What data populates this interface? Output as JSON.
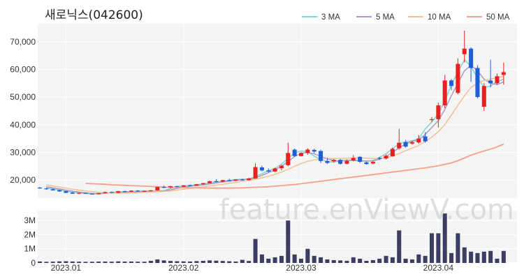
{
  "title": "새로닉스(042600)",
  "watermark": "feature.enViewV.com",
  "chart_data": {
    "type": "candlestick",
    "price_axis": {
      "ticks": [
        20000,
        30000,
        40000,
        50000,
        60000,
        70000
      ],
      "tick_labels": [
        "20,000",
        "30,000",
        "40,000",
        "50,000",
        "60,000",
        "70,000"
      ],
      "ylim": [
        13500,
        76500
      ]
    },
    "volume_axis": {
      "ticks": [
        0,
        1000000,
        2000000,
        3000000
      ],
      "tick_labels": [
        "0",
        "1M",
        "2M",
        "3M"
      ],
      "ylim": [
        0,
        3700000
      ]
    },
    "x_ticks": [
      "2023.01",
      "2023.02",
      "2023.03",
      "2023.04"
    ],
    "x_tick_index": [
      4,
      22,
      40,
      61
    ],
    "grid": true,
    "legend_placement": "top-right",
    "legend": [
      {
        "name": "3 MA",
        "color": "#7fd3d0"
      },
      {
        "name": "5 MA",
        "color": "#b09ac6"
      },
      {
        "name": "10 MA",
        "color": "#f3c28f"
      },
      {
        "name": "50 MA",
        "color": "#f4a08a"
      }
    ],
    "colors": {
      "up": "#e8201f",
      "down": "#1f5fd6",
      "volume": "#3c3d63"
    },
    "ma_values": {
      "3 MA": [
        17200,
        16800,
        16400,
        16000,
        15700,
        15400,
        15200,
        15000,
        15100,
        15300,
        15500,
        15700,
        15800,
        15900,
        16000,
        16100,
        16000,
        16000,
        16200,
        17000,
        17600,
        17900,
        18100,
        18300,
        18600,
        19000,
        19400,
        19600,
        19900,
        20200,
        20300,
        20300,
        21300,
        22300,
        23400,
        24200,
        25800,
        27800,
        29800,
        30500,
        30300,
        28700,
        27400,
        26700,
        26500,
        26900,
        27300,
        27100,
        26900,
        26800,
        27100,
        28200,
        29500,
        31400,
        33100,
        33800,
        34200,
        35000,
        38500,
        41000,
        44000,
        48500,
        54500,
        59000,
        63500,
        61000,
        57000,
        53500,
        54000,
        55500,
        56500
      ],
      "5 MA": [
        17600,
        17200,
        16800,
        16400,
        16000,
        15700,
        15400,
        15200,
        15100,
        15200,
        15400,
        15500,
        15600,
        15700,
        15800,
        15900,
        16000,
        16000,
        16100,
        16500,
        17000,
        17400,
        17800,
        18000,
        18300,
        18600,
        19000,
        19300,
        19600,
        19900,
        20200,
        20300,
        20800,
        21700,
        22700,
        23700,
        25000,
        26700,
        28500,
        29700,
        30000,
        29500,
        28600,
        27700,
        27000,
        26900,
        27000,
        27200,
        27000,
        26900,
        26900,
        27500,
        28500,
        30000,
        31700,
        33100,
        33900,
        34500,
        36500,
        39000,
        41500,
        45500,
        50500,
        55000,
        59500,
        61500,
        59500,
        56500,
        55000,
        54500,
        55500
      ],
      "10 MA": [
        18300,
        17900,
        17500,
        17100,
        16700,
        16400,
        16100,
        15800,
        15600,
        15400,
        15300,
        15300,
        15300,
        15400,
        15500,
        15600,
        15700,
        15800,
        15900,
        16100,
        16400,
        16700,
        17000,
        17300,
        17600,
        17900,
        18200,
        18500,
        18900,
        19200,
        19600,
        19900,
        20300,
        20800,
        21400,
        22100,
        22900,
        23900,
        25000,
        26000,
        26800,
        27300,
        27600,
        27800,
        27800,
        27800,
        27900,
        28000,
        28000,
        27900,
        27800,
        27900,
        28100,
        28700,
        29600,
        30600,
        31600,
        32500,
        34000,
        35500,
        37500,
        40000,
        43500,
        47000,
        50500,
        53500,
        55000,
        56000,
        56500,
        57000,
        57500
      ],
      "50 MA": [
        18800,
        18700,
        18600,
        18500,
        18300,
        18200,
        18100,
        18000,
        17900,
        17800,
        17700,
        17600,
        17500,
        17400,
        17350,
        17300,
        17250,
        17200,
        17150,
        17100,
        17100,
        17100,
        17100,
        17150,
        17200,
        17300,
        17400,
        17500,
        17600,
        17800,
        18000,
        18200,
        18400,
        18700,
        19000,
        19300,
        19600,
        19900,
        20200,
        20500,
        20800,
        21100,
        21400,
        21700,
        22000,
        22300,
        22600,
        22900,
        23200,
        23500,
        23800,
        24100,
        24400,
        24800,
        25200,
        25700,
        26200,
        27000,
        28000,
        29000,
        29800,
        30500,
        31200,
        32000,
        33000
      ]
    },
    "candles": [
      {
        "o": 17300,
        "h": 17500,
        "l": 16900,
        "c": 17000,
        "v": 100000
      },
      {
        "o": 17000,
        "h": 17200,
        "l": 16500,
        "c": 16700,
        "v": 80000
      },
      {
        "o": 16700,
        "h": 16900,
        "l": 16200,
        "c": 16300,
        "v": 90000
      },
      {
        "o": 16400,
        "h": 16500,
        "l": 15800,
        "c": 15900,
        "v": 110000
      },
      {
        "o": 16000,
        "h": 16100,
        "l": 15300,
        "c": 15400,
        "v": 120000
      },
      {
        "o": 15500,
        "h": 15700,
        "l": 15000,
        "c": 15100,
        "v": 100000
      },
      {
        "o": 15100,
        "h": 15500,
        "l": 14900,
        "c": 15400,
        "v": 90000
      },
      {
        "o": 15400,
        "h": 15500,
        "l": 15000,
        "c": 15100,
        "v": 80000
      },
      {
        "o": 15100,
        "h": 15200,
        "l": 14800,
        "c": 14900,
        "v": 85000
      },
      {
        "o": 14900,
        "h": 15400,
        "l": 14800,
        "c": 15300,
        "v": 95000
      },
      {
        "o": 15300,
        "h": 15800,
        "l": 15200,
        "c": 15700,
        "v": 100000
      },
      {
        "o": 15700,
        "h": 15900,
        "l": 15300,
        "c": 15400,
        "v": 90000
      },
      {
        "o": 15400,
        "h": 16100,
        "l": 15300,
        "c": 16000,
        "v": 110000
      },
      {
        "o": 16000,
        "h": 16200,
        "l": 15700,
        "c": 15800,
        "v": 95000
      },
      {
        "o": 15800,
        "h": 16300,
        "l": 15700,
        "c": 16200,
        "v": 100000
      },
      {
        "o": 16200,
        "h": 16400,
        "l": 15800,
        "c": 15900,
        "v": 90000
      },
      {
        "o": 15900,
        "h": 16200,
        "l": 15700,
        "c": 16100,
        "v": 85000
      },
      {
        "o": 16100,
        "h": 16400,
        "l": 15900,
        "c": 16300,
        "v": 150000
      },
      {
        "o": 16300,
        "h": 17700,
        "l": 16200,
        "c": 17500,
        "v": 250000
      },
      {
        "o": 17500,
        "h": 18000,
        "l": 17100,
        "c": 17400,
        "v": 180000
      },
      {
        "o": 17400,
        "h": 17900,
        "l": 17100,
        "c": 17800,
        "v": 140000
      },
      {
        "o": 17800,
        "h": 18000,
        "l": 17400,
        "c": 17600,
        "v": 120000
      },
      {
        "o": 17600,
        "h": 18200,
        "l": 17500,
        "c": 18100,
        "v": 110000
      },
      {
        "o": 18100,
        "h": 18400,
        "l": 17800,
        "c": 18000,
        "v": 100000
      },
      {
        "o": 18000,
        "h": 18600,
        "l": 17900,
        "c": 18500,
        "v": 130000
      },
      {
        "o": 18500,
        "h": 19000,
        "l": 18300,
        "c": 18900,
        "v": 150000
      },
      {
        "o": 18900,
        "h": 19800,
        "l": 18800,
        "c": 19600,
        "v": 180000
      },
      {
        "o": 19600,
        "h": 20300,
        "l": 19200,
        "c": 19400,
        "v": 160000
      },
      {
        "o": 19400,
        "h": 20100,
        "l": 19300,
        "c": 20000,
        "v": 140000
      },
      {
        "o": 20000,
        "h": 20500,
        "l": 19600,
        "c": 19800,
        "v": 120000
      },
      {
        "o": 19800,
        "h": 20300,
        "l": 19600,
        "c": 20200,
        "v": 100000
      },
      {
        "o": 20200,
        "h": 20600,
        "l": 19800,
        "c": 20000,
        "v": 220000
      },
      {
        "o": 20000,
        "h": 20800,
        "l": 19800,
        "c": 20600,
        "v": 140000
      },
      {
        "o": 20600,
        "h": 26000,
        "l": 20400,
        "c": 24700,
        "v": 1700000
      },
      {
        "o": 24600,
        "h": 25200,
        "l": 23100,
        "c": 23500,
        "v": 600000
      },
      {
        "o": 23500,
        "h": 24200,
        "l": 22700,
        "c": 23100,
        "v": 300000
      },
      {
        "o": 23100,
        "h": 24500,
        "l": 22900,
        "c": 24200,
        "v": 400000
      },
      {
        "o": 24300,
        "h": 25500,
        "l": 23600,
        "c": 25200,
        "v": 500000
      },
      {
        "o": 25400,
        "h": 33500,
        "l": 25000,
        "c": 29800,
        "v": 3000000
      },
      {
        "o": 31000,
        "h": 31400,
        "l": 28400,
        "c": 28700,
        "v": 600000
      },
      {
        "o": 28700,
        "h": 30100,
        "l": 28500,
        "c": 29800,
        "v": 300000
      },
      {
        "o": 29800,
        "h": 31500,
        "l": 29200,
        "c": 31000,
        "v": 1000000
      },
      {
        "o": 30900,
        "h": 31300,
        "l": 29800,
        "c": 30300,
        "v": 500000
      },
      {
        "o": 30500,
        "h": 31000,
        "l": 26200,
        "c": 26900,
        "v": 400000
      },
      {
        "o": 26900,
        "h": 28100,
        "l": 25800,
        "c": 26200,
        "v": 250000
      },
      {
        "o": 26800,
        "h": 27600,
        "l": 26300,
        "c": 27300,
        "v": 200000
      },
      {
        "o": 27300,
        "h": 27600,
        "l": 25600,
        "c": 25900,
        "v": 180000
      },
      {
        "o": 25900,
        "h": 27400,
        "l": 25700,
        "c": 26900,
        "v": 150000
      },
      {
        "o": 27100,
        "h": 29000,
        "l": 26800,
        "c": 28000,
        "v": 400000
      },
      {
        "o": 28400,
        "h": 28700,
        "l": 26200,
        "c": 26600,
        "v": 300000
      },
      {
        "o": 26400,
        "h": 26700,
        "l": 25600,
        "c": 25800,
        "v": 150000
      },
      {
        "o": 26000,
        "h": 26900,
        "l": 25700,
        "c": 26600,
        "v": 200000
      },
      {
        "o": 28000,
        "h": 28400,
        "l": 27300,
        "c": 27800,
        "v": 300000
      },
      {
        "o": 27800,
        "h": 29300,
        "l": 27500,
        "c": 28800,
        "v": 500000
      },
      {
        "o": 28600,
        "h": 31800,
        "l": 28400,
        "c": 31300,
        "v": 400000
      },
      {
        "o": 31500,
        "h": 38500,
        "l": 31000,
        "c": 33500,
        "v": 2300000
      },
      {
        "o": 33700,
        "h": 34500,
        "l": 31700,
        "c": 32100,
        "v": 300000
      },
      {
        "o": 33200,
        "h": 34200,
        "l": 32800,
        "c": 33700,
        "v": 250000
      },
      {
        "o": 33600,
        "h": 36300,
        "l": 33100,
        "c": 35000,
        "v": 600000
      },
      {
        "o": 35800,
        "h": 37300,
        "l": 33500,
        "c": 34000,
        "v": 500000
      },
      {
        "o": 41800,
        "h": 42800,
        "l": 40900,
        "c": 42000,
        "v": 2100000
      },
      {
        "o": 42000,
        "h": 48000,
        "l": 39000,
        "c": 47000,
        "v": 2100000
      },
      {
        "o": 47000,
        "h": 58000,
        "l": 46000,
        "c": 56000,
        "v": 3500000
      },
      {
        "o": 56000,
        "h": 56500,
        "l": 52500,
        "c": 54000,
        "v": 700000
      },
      {
        "o": 51500,
        "h": 64000,
        "l": 51000,
        "c": 62000,
        "v": 2100000
      },
      {
        "o": 65500,
        "h": 74000,
        "l": 62500,
        "c": 67500,
        "v": 1100000
      },
      {
        "o": 67500,
        "h": 68000,
        "l": 55500,
        "c": 60500,
        "v": 800000
      },
      {
        "o": 60500,
        "h": 61500,
        "l": 49500,
        "c": 50000,
        "v": 700000
      },
      {
        "o": 46500,
        "h": 55000,
        "l": 45000,
        "c": 54000,
        "v": 800000
      },
      {
        "o": 56000,
        "h": 63500,
        "l": 53500,
        "c": 55000,
        "v": 850000
      },
      {
        "o": 55000,
        "h": 58500,
        "l": 54500,
        "c": 57500,
        "v": 300000
      },
      {
        "o": 58000,
        "h": 62500,
        "l": 54500,
        "c": 59000,
        "v": 850000
      }
    ]
  }
}
